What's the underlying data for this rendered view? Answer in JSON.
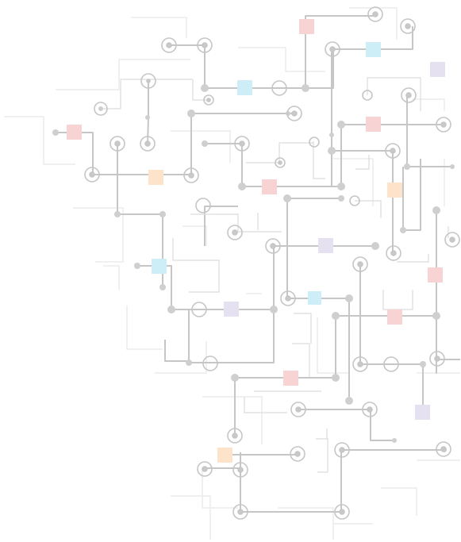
{
  "artwork": {
    "kind": "decorative circuit board illustration",
    "palette": {
      "background": "#ffffff",
      "trace_light": "#ececec",
      "trace_mid": "#dcdcdc",
      "trace_dark": "#c6c6c6",
      "node": "#cfcfcf",
      "pad_pink": "#f7d3d4",
      "pad_blue": "#cdeef6",
      "pad_peach": "#fde3c9",
      "pad_lavender": "#e6e1f1"
    },
    "pad_color_sequence": [
      "pink",
      "pink",
      "blue",
      "blue",
      "lavender",
      "pink",
      "peach",
      "peach",
      "pink",
      "pink",
      "lavender",
      "pink",
      "blue",
      "blue",
      "lavender",
      "pink",
      "pink",
      "lavender",
      "peach"
    ]
  }
}
